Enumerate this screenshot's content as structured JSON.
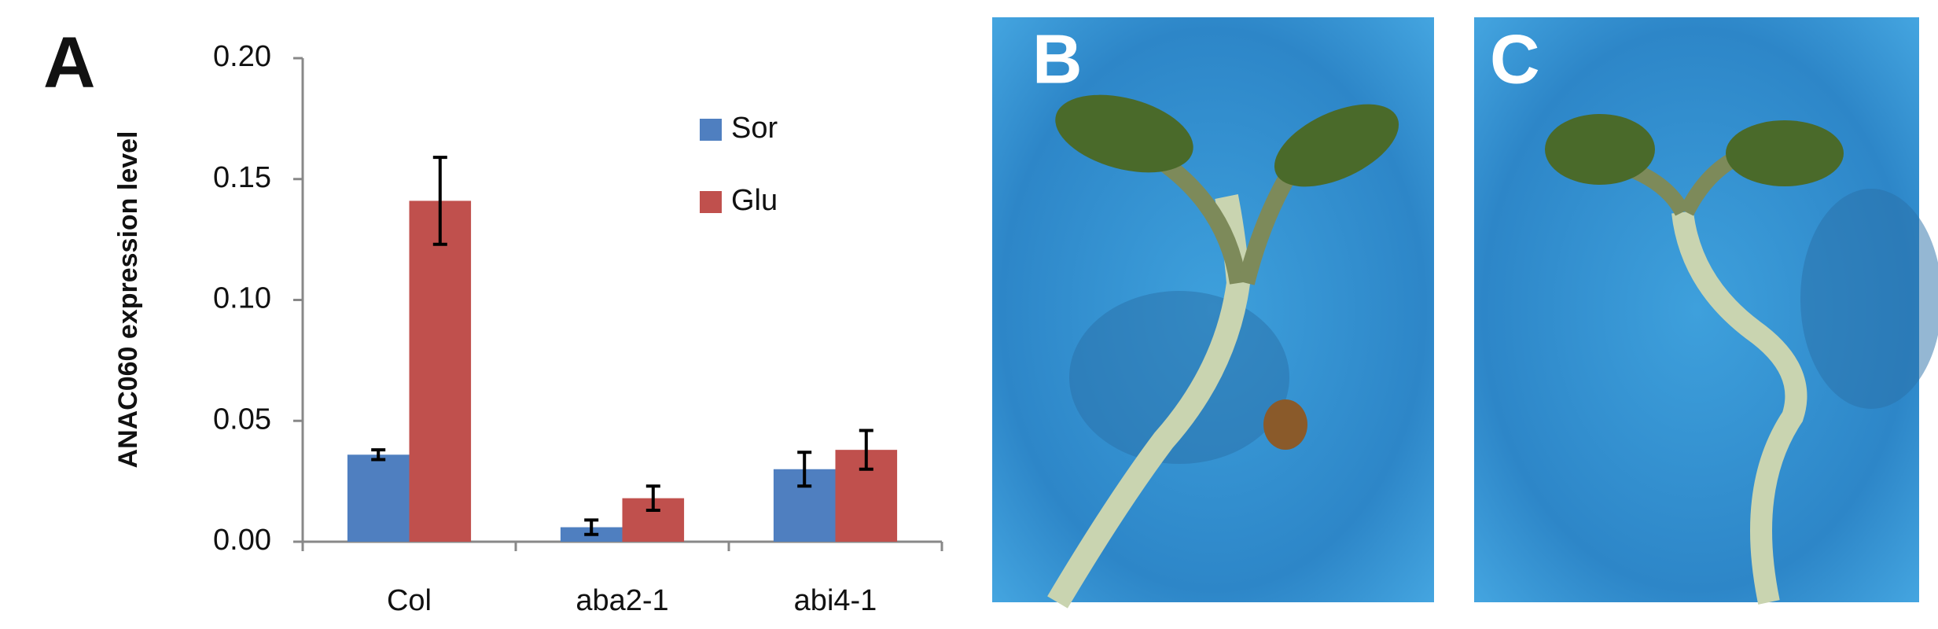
{
  "panel_label": "A",
  "chart_data": {
    "type": "bar",
    "y_label": "ANAC060 expression level",
    "categories": [
      "Col",
      "aba2-1",
      "abi4-1"
    ],
    "series": [
      {
        "name": "Sor",
        "color": "#4f7fc0",
        "values": [
          0.036,
          0.006,
          0.03
        ],
        "errors": [
          0.002,
          0.003,
          0.007
        ]
      },
      {
        "name": "Glu",
        "color": "#c0504d",
        "values": [
          0.141,
          0.018,
          0.038
        ],
        "errors": [
          0.018,
          0.005,
          0.008
        ]
      }
    ],
    "ylim": [
      0,
      0.2
    ],
    "yticks": [
      {
        "value": 0,
        "label": "0.00"
      },
      0.05,
      {
        "value": 0.1,
        "label": "0.10"
      },
      0.15,
      {
        "value": 0.2,
        "label": "0.20"
      }
    ],
    "grid": false
  },
  "photos": [
    {
      "label": "B"
    },
    {
      "label": "C"
    }
  ]
}
